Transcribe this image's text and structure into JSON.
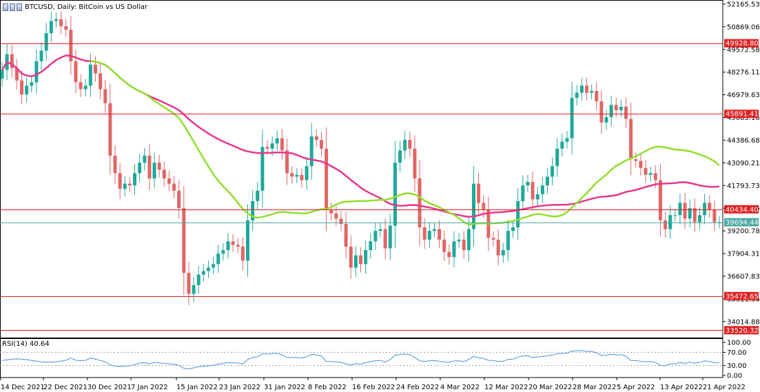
{
  "window": {
    "title": "BTCUSD, Daily:  BitCoin vs US Dollar"
  },
  "rsi": {
    "label": "RSI(14) 40.64"
  },
  "colors": {
    "background": "#ffffff",
    "bull_candle": "#1fa89a",
    "bear_candle": "#e06666",
    "ma_fast": "#8fe02a",
    "ma_slow": "#e8358f",
    "hline": "#e02020",
    "price_line": "#4aa8a0",
    "rsi_line": "#4a90d9"
  },
  "chart_data": [
    {
      "type": "candlestick",
      "title": "BTCUSD, Daily:  BitCoin vs US Dollar",
      "x_tick_labels": [
        "14 Dec 2021",
        "22 Dec 2021",
        "30 Dec 2021",
        "7 Jan 2022",
        "15 Jan 2022",
        "23 Jan 2022",
        "31 Jan 2022",
        "8 Feb 2022",
        "16 Feb 2022",
        "24 Feb 2022",
        "4 Mar 2022",
        "12 Mar 2022",
        "20 Mar 2022",
        "28 Mar 2022",
        "5 Apr 2022",
        "13 Apr 2022",
        "21 Apr 2022"
      ],
      "y_tick_labels": [
        "52165.535",
        "50869.060",
        "49572.585",
        "48276.110",
        "46979.635",
        "45683.160",
        "44386.685",
        "43090.210",
        "41793.735",
        "40497.260",
        "39200.785",
        "37904.310",
        "36607.835",
        "35311.360",
        "34014.885"
      ],
      "y_range": [
        33100,
        52400
      ],
      "horizontal_levels": [
        49928.803,
        45891.413,
        40434.404,
        35472.658,
        33520.324
      ],
      "current_price": 39694.442,
      "closes": [
        48400,
        49300,
        48500,
        47800,
        47000,
        47500,
        47700,
        48900,
        49500,
        50500,
        51200,
        51300,
        50900,
        50700,
        48900,
        47700,
        47300,
        47500,
        48700,
        48200,
        47300,
        46500,
        43500,
        42500,
        41600,
        41900,
        41800,
        42500,
        43100,
        43500,
        42200,
        43100,
        42700,
        42200,
        41900,
        41500,
        40500,
        36800,
        35600,
        36100,
        36700,
        36900,
        37100,
        37300,
        37900,
        38100,
        38600,
        38400,
        38300,
        37500,
        39800,
        40900,
        41500,
        44000,
        43900,
        44200,
        44500,
        43800,
        42500,
        42300,
        42400,
        42100,
        42900,
        44600,
        44400,
        43900,
        40400,
        40200,
        39900,
        39600,
        38300,
        37100,
        37800,
        37300,
        38100,
        38600,
        39200,
        39300,
        38200,
        39500,
        43100,
        43800,
        44400,
        43900,
        42200,
        39400,
        38700,
        39200,
        39300,
        38700,
        38000,
        37700,
        38600,
        38700,
        38100,
        39300,
        41900,
        40800,
        40400,
        38800,
        38700,
        37800,
        38100,
        39200,
        39400,
        40900,
        41800,
        42000,
        41000,
        41300,
        41800,
        42300,
        42900,
        43900,
        44300,
        44500,
        46800,
        47100,
        47500,
        47100,
        47200,
        46600,
        45400,
        45700,
        46400,
        46100,
        46300,
        45600,
        43300,
        43200,
        42800,
        42400,
        42500,
        42100,
        39800,
        39300,
        40100,
        40100,
        40800,
        39900,
        40500,
        39700,
        40100,
        40800,
        40400,
        39700,
        39700
      ]
    },
    {
      "type": "line",
      "title": "RSI(14) 40.64",
      "y_tick_labels": [
        "100.00",
        "70.00",
        "30.00",
        "0.00"
      ],
      "ylim": [
        0,
        100
      ],
      "levels": [
        70,
        30
      ]
    }
  ]
}
